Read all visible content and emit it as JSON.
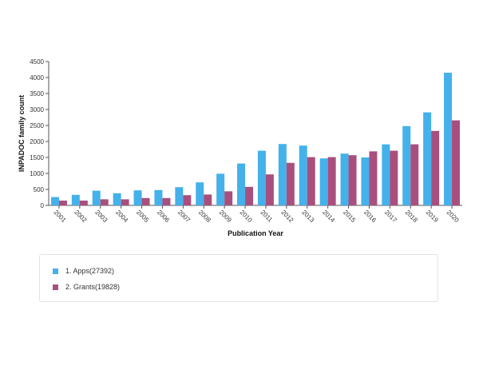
{
  "chart_data": {
    "type": "bar",
    "xlabel": "Publication Year",
    "ylabel": "INPADOC family count",
    "ylim": [
      0,
      4500
    ],
    "yticks": [
      0,
      500,
      1000,
      1500,
      2000,
      2500,
      3000,
      3500,
      4000,
      4500
    ],
    "categories": [
      "2001",
      "2002",
      "2003",
      "2004",
      "2005",
      "2006",
      "2007",
      "2008",
      "2009",
      "2010",
      "2011",
      "2012",
      "2013",
      "2014",
      "2015",
      "2016",
      "2017",
      "2018",
      "2019",
      "2020"
    ],
    "series": [
      {
        "name": "1. Apps(27392)",
        "color": "#44b1ea",
        "values": [
          260,
          330,
          460,
          380,
          470,
          480,
          570,
          720,
          990,
          1310,
          1710,
          1920,
          1870,
          1470,
          1620,
          1500,
          1910,
          2480,
          2910,
          4150
        ]
      },
      {
        "name": "2. Grants(19828)",
        "color": "#a94f7e",
        "values": [
          150,
          150,
          190,
          190,
          230,
          230,
          320,
          340,
          440,
          580,
          970,
          1330,
          1510,
          1510,
          1570,
          1690,
          1710,
          1910,
          2330,
          2660
        ]
      }
    ],
    "grid": false,
    "legend_position": "bottom"
  }
}
